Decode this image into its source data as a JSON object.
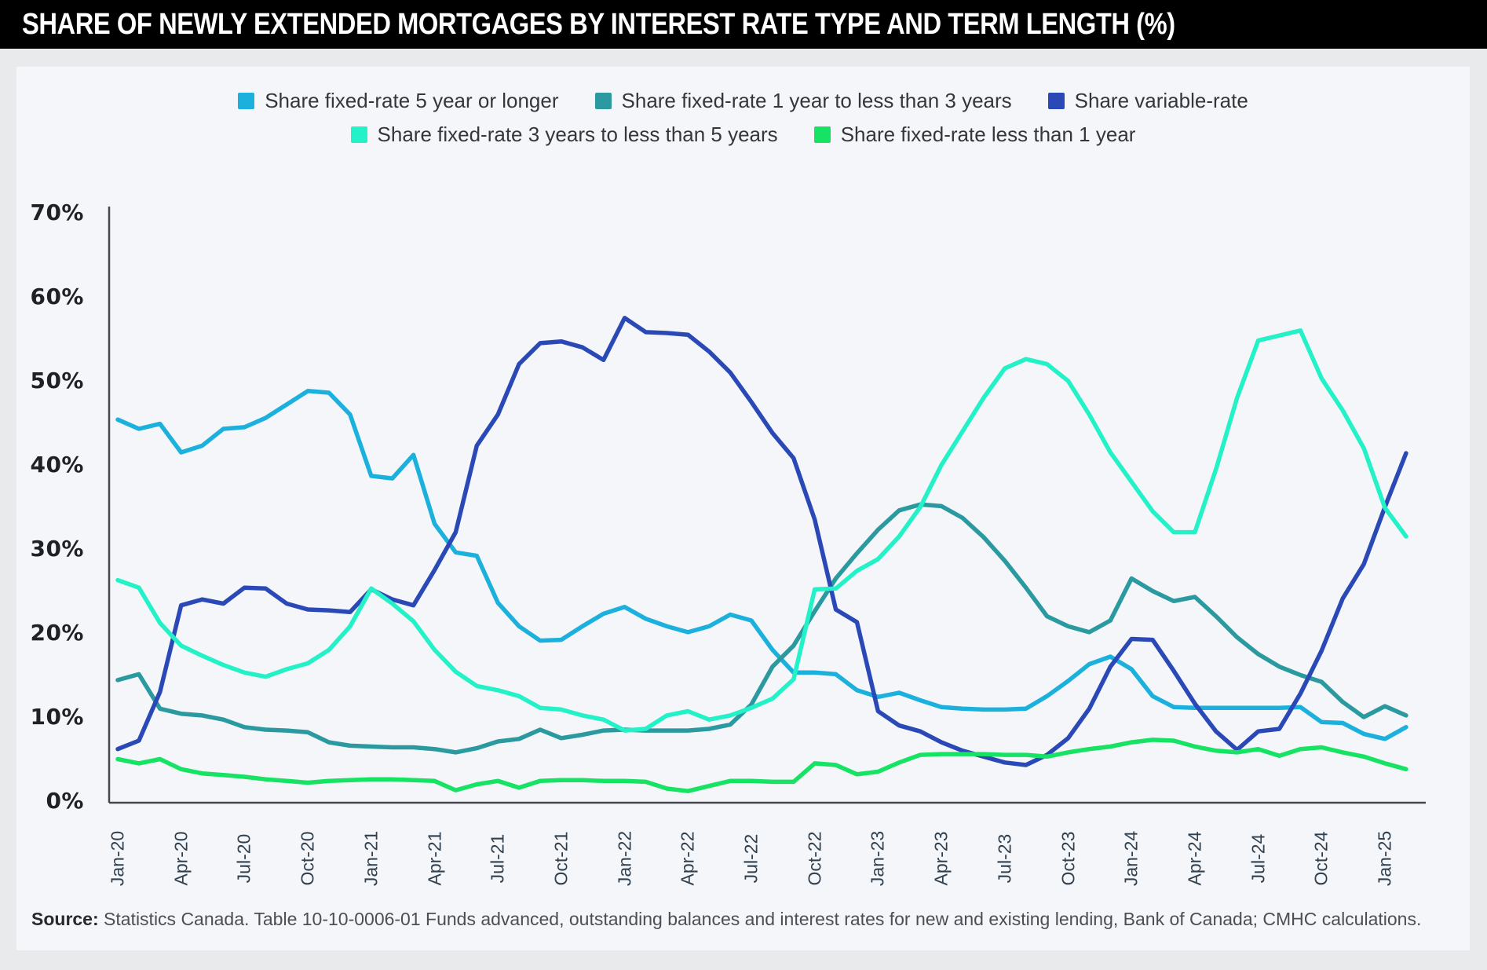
{
  "header": {
    "title": "SHARE OF NEWLY EXTENDED MORTGAGES BY INTEREST RATE TYPE AND TERM LENGTH (%)"
  },
  "legend": {
    "rows": [
      [
        {
          "id": "fixed-5plus",
          "label": "Share fixed-rate 5 year or longer",
          "color": "#1cb0dd"
        },
        {
          "id": "fixed-1to3",
          "label": "Share fixed-rate 1 year to less than 3 years",
          "color": "#2a9aa0"
        },
        {
          "id": "variable",
          "label": "Share variable-rate",
          "color": "#2a49b7"
        }
      ],
      [
        {
          "id": "fixed-3to5",
          "label": "Share fixed-rate 3 years to less than 5 years",
          "color": "#23f1c7"
        },
        {
          "id": "fixed-less1",
          "label": "Share fixed-rate less than 1 year",
          "color": "#16e363"
        }
      ]
    ]
  },
  "source": {
    "label": "Source:",
    "text": " Statistics Canada. Table 10-10-0006-01 Funds advanced, outstanding balances and interest rates for new and existing lending, Bank of Canada; CMHC calculations."
  },
  "chart_data": {
    "type": "line",
    "title": "Share of newly extended mortgages by interest rate type and term length (%)",
    "xlabel": "",
    "ylabel": "",
    "ylim": [
      0,
      70
    ],
    "grid": false,
    "legend_position": "top",
    "y_ticks": [
      "70%",
      "60%",
      "50%",
      "40%",
      "30%",
      "20%",
      "10%",
      "0%"
    ],
    "x_tick_labels": [
      "Jan-20",
      "Apr-20",
      "Jul-20",
      "Oct-20",
      "Jan-21",
      "Apr-21",
      "Jul-21",
      "Oct-21",
      "Jan-22",
      "Apr-22",
      "Jul-22",
      "Oct-22",
      "Jan-23",
      "Apr-23",
      "Jul-23",
      "Oct-23",
      "Jan-24",
      "Apr-24",
      "Jul-24",
      "Oct-24",
      "Jan-25"
    ],
    "x": [
      "Jan-20",
      "Feb-20",
      "Mar-20",
      "Apr-20",
      "May-20",
      "Jun-20",
      "Jul-20",
      "Aug-20",
      "Sep-20",
      "Oct-20",
      "Nov-20",
      "Dec-20",
      "Jan-21",
      "Feb-21",
      "Mar-21",
      "Apr-21",
      "May-21",
      "Jun-21",
      "Jul-21",
      "Aug-21",
      "Sep-21",
      "Oct-21",
      "Nov-21",
      "Dec-21",
      "Jan-22",
      "Feb-22",
      "Mar-22",
      "Apr-22",
      "May-22",
      "Jun-22",
      "Jul-22",
      "Aug-22",
      "Sep-22",
      "Oct-22",
      "Nov-22",
      "Dec-22",
      "Jan-23",
      "Feb-23",
      "Mar-23",
      "Apr-23",
      "May-23",
      "Jun-23",
      "Jul-23",
      "Aug-23",
      "Sep-23",
      "Oct-23",
      "Nov-23",
      "Dec-23",
      "Jan-24",
      "Feb-24",
      "Mar-24",
      "Apr-24",
      "May-24",
      "Jun-24",
      "Jul-24",
      "Aug-24",
      "Sep-24",
      "Oct-24",
      "Nov-24",
      "Dec-24",
      "Jan-25",
      "Feb-25"
    ],
    "series": [
      {
        "id": "fixed-5plus",
        "name": "Share fixed-rate 5 year or longer",
        "color": "#1cb0dd",
        "values": [
          45.4,
          44.3,
          44.9,
          41.5,
          42.3,
          44.3,
          44.5,
          45.6,
          47.2,
          48.8,
          48.6,
          46.0,
          38.7,
          38.4,
          41.2,
          33.0,
          29.6,
          29.2,
          23.6,
          20.8,
          19.1,
          19.2,
          20.8,
          22.3,
          23.1,
          21.7,
          20.8,
          20.1,
          20.8,
          22.2,
          21.5,
          18.0,
          15.3,
          15.3,
          15.1,
          13.2,
          12.4,
          12.9,
          12.0,
          11.2,
          11.0,
          10.9,
          10.9,
          11.0,
          12.5,
          14.3,
          16.3,
          17.2,
          15.7,
          12.5,
          11.2,
          11.1,
          11.1,
          11.1,
          11.1,
          11.1,
          11.2,
          9.4,
          9.3,
          8.0,
          7.4,
          8.8
        ]
      },
      {
        "id": "fixed-1to3",
        "name": "Share fixed-rate 1 year to less than 3 years",
        "color": "#2a9aa0",
        "values": [
          14.4,
          15.1,
          11.0,
          10.4,
          10.2,
          9.7,
          8.8,
          8.5,
          8.4,
          8.2,
          7.0,
          6.6,
          6.5,
          6.4,
          6.4,
          6.2,
          5.8,
          6.3,
          7.1,
          7.4,
          8.5,
          7.5,
          7.9,
          8.4,
          8.5,
          8.4,
          8.4,
          8.4,
          8.6,
          9.1,
          11.5,
          16.0,
          18.5,
          22.6,
          26.5,
          29.5,
          32.3,
          34.6,
          35.3,
          35.1,
          33.7,
          31.4,
          28.6,
          25.4,
          22.0,
          20.8,
          20.1,
          21.5,
          26.5,
          25.0,
          23.8,
          24.3,
          22.0,
          19.5,
          17.5,
          16.0,
          15.0,
          14.2,
          11.8,
          10.0,
          11.3,
          10.2
        ]
      },
      {
        "id": "variable",
        "name": "Share variable-rate",
        "color": "#2a49b7",
        "values": [
          6.2,
          7.2,
          13.0,
          23.3,
          24.0,
          23.5,
          25.4,
          25.3,
          23.5,
          22.8,
          22.7,
          22.5,
          25.2,
          24.0,
          23.3,
          27.5,
          32.0,
          42.3,
          46.0,
          52.0,
          54.5,
          54.7,
          54.0,
          52.5,
          57.5,
          55.8,
          55.7,
          55.5,
          53.5,
          51.0,
          47.5,
          43.8,
          40.8,
          33.5,
          22.8,
          21.3,
          10.7,
          9.0,
          8.3,
          7.0,
          6.0,
          5.3,
          4.6,
          4.3,
          5.5,
          7.5,
          11.0,
          16.0,
          19.3,
          19.2,
          15.5,
          11.6,
          8.3,
          6.1,
          8.3,
          8.6,
          12.8,
          17.9,
          24.1,
          28.2,
          35.0,
          41.4
        ]
      },
      {
        "id": "fixed-3to5",
        "name": "Share fixed-rate 3 years to less than 5 years",
        "color": "#23f1c7",
        "values": [
          26.3,
          25.4,
          21.2,
          18.5,
          17.3,
          16.2,
          15.3,
          14.8,
          15.7,
          16.4,
          18.0,
          20.8,
          25.3,
          23.5,
          21.4,
          18.0,
          15.4,
          13.7,
          13.2,
          12.5,
          11.1,
          10.9,
          10.2,
          9.7,
          8.4,
          8.6,
          10.2,
          10.7,
          9.7,
          10.2,
          11.1,
          12.2,
          14.5,
          25.2,
          25.3,
          27.4,
          28.8,
          31.5,
          35.0,
          40.0,
          44.0,
          48.0,
          51.5,
          52.6,
          52.0,
          50.0,
          46.0,
          41.5,
          38.0,
          34.5,
          32.0,
          32.0,
          39.5,
          48.0,
          54.8,
          55.4,
          56.0,
          50.3,
          46.5,
          42.0,
          34.9,
          31.5
        ]
      },
      {
        "id": "fixed-less1",
        "name": "Share fixed-rate less than 1 year",
        "color": "#16e363",
        "values": [
          5.0,
          4.5,
          5.0,
          3.8,
          3.3,
          3.1,
          2.9,
          2.6,
          2.4,
          2.2,
          2.4,
          2.5,
          2.6,
          2.6,
          2.5,
          2.4,
          1.3,
          2.0,
          2.4,
          1.6,
          2.4,
          2.5,
          2.5,
          2.4,
          2.4,
          2.3,
          1.5,
          1.2,
          1.8,
          2.4,
          2.4,
          2.3,
          2.3,
          4.5,
          4.3,
          3.2,
          3.5,
          4.6,
          5.5,
          5.6,
          5.6,
          5.6,
          5.5,
          5.5,
          5.3,
          5.8,
          6.2,
          6.5,
          7.0,
          7.3,
          7.2,
          6.5,
          6.0,
          5.8,
          6.2,
          5.4,
          6.2,
          6.4,
          5.8,
          5.3,
          4.5,
          3.8
        ]
      }
    ]
  },
  "colors": {
    "title_bar_bg": "#000000",
    "title_text": "#ffffff",
    "page_bg": "#e9eaec",
    "card_bg": "#f4f6f9",
    "axis": "#44484e",
    "y_label": "#1e2126",
    "x_label": "#31404f",
    "source_text": "#4b4f55"
  }
}
